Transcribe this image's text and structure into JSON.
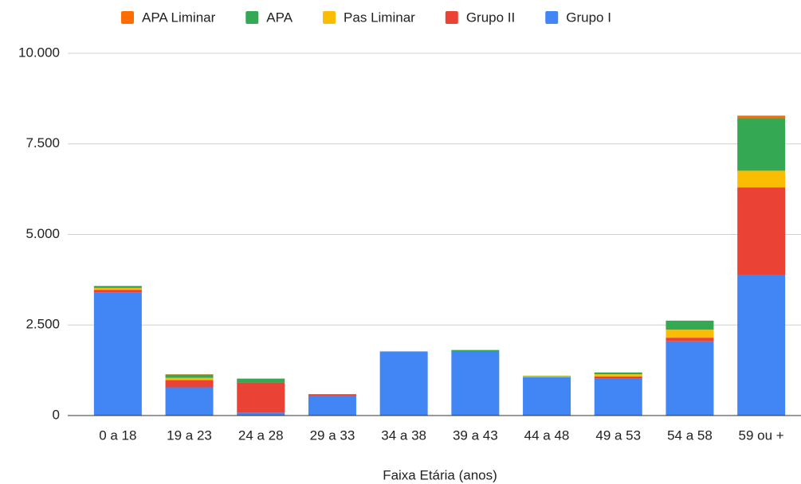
{
  "chart_data": {
    "type": "stacked_bar",
    "categories": [
      "0 a 18",
      "19 a 23",
      "24 a 28",
      "29 a 33",
      "34 a 38",
      "39 a 43",
      "44 a 48",
      "49 a 53",
      "54 a 58",
      "59 ou +"
    ],
    "series": [
      {
        "name": "APA Liminar",
        "color": "#ff6d01",
        "values": [
          10,
          10,
          0,
          0,
          0,
          0,
          0,
          0,
          0,
          70
        ]
      },
      {
        "name": "APA",
        "color": "#34a853",
        "values": [
          50,
          90,
          110,
          0,
          0,
          30,
          10,
          50,
          250,
          1450
        ]
      },
      {
        "name": "Pas Liminar",
        "color": "#fbbc04",
        "values": [
          50,
          60,
          0,
          0,
          0,
          0,
          30,
          60,
          220,
          460
        ]
      },
      {
        "name": "Grupo II",
        "color": "#ea4335",
        "values": [
          70,
          200,
          830,
          40,
          0,
          0,
          0,
          60,
          100,
          2420
        ]
      },
      {
        "name": "Grupo I",
        "color": "#4285f4",
        "values": [
          3400,
          780,
          80,
          550,
          1770,
          1780,
          1060,
          1020,
          2050,
          3880
        ]
      }
    ],
    "x_label": "Faixa Etária (anos)",
    "ylim": [
      0,
      10000
    ],
    "yticks": [
      0,
      {
        "value": 2500,
        "label": "2.500"
      },
      {
        "value": 5000,
        "label": "5.000"
      },
      {
        "value": 7500,
        "label": "7.500"
      },
      {
        "value": 10000,
        "label": "10.000"
      }
    ],
    "grid": true,
    "legend": "top"
  }
}
